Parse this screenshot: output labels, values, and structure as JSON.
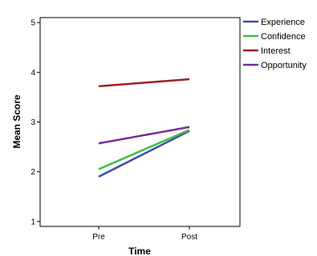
{
  "chart_data": {
    "type": "line",
    "title": "",
    "xlabel": "Time",
    "ylabel": "Mean Score",
    "categories": [
      "Pre",
      "Post"
    ],
    "ylim": [
      0.9,
      5.1
    ],
    "yticks": [
      1,
      2,
      3,
      4,
      5
    ],
    "grid": false,
    "legend_position": "top-right",
    "series": [
      {
        "name": "Experience",
        "color": "#3a4fa3",
        "values": [
          1.9,
          2.82
        ]
      },
      {
        "name": "Confidence",
        "color": "#3fbf4a",
        "values": [
          2.05,
          2.84
        ]
      },
      {
        "name": "Interest",
        "color": "#a01e22",
        "values": [
          3.72,
          3.86
        ]
      },
      {
        "name": "Opportunity",
        "color": "#7a2a9a",
        "values": [
          2.57,
          2.9
        ]
      }
    ]
  }
}
